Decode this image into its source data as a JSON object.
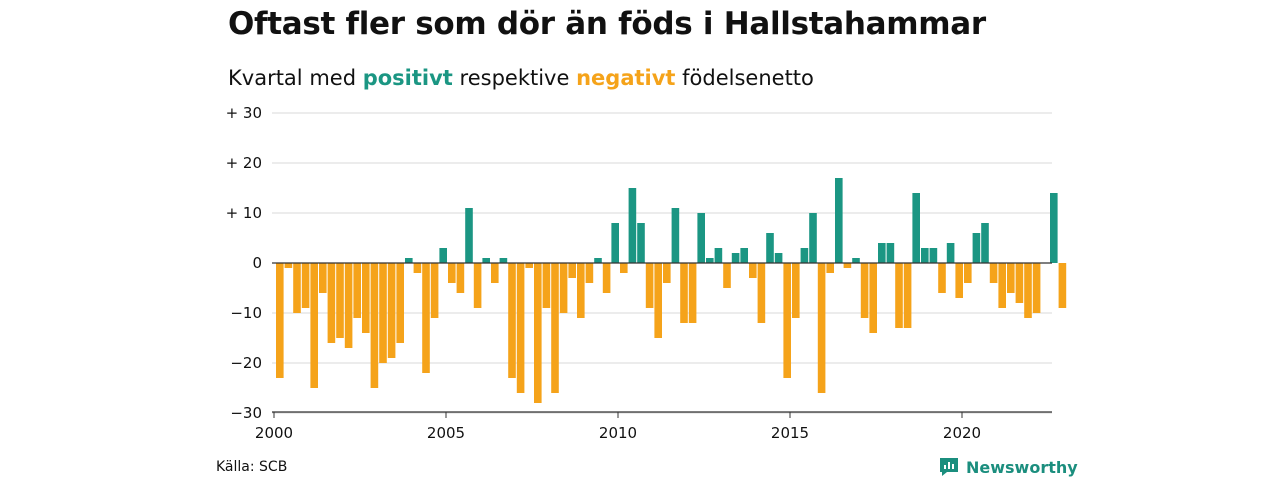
{
  "header": {
    "title": "Oftast fler som dör än föds i Hallstahammar",
    "subtitle_prefix": "Kvartal med",
    "subtitle_positive": "positivt",
    "subtitle_middle": "respektive",
    "subtitle_negative": "negativt",
    "subtitle_suffix": "födelsenetto"
  },
  "footer": {
    "source": "Källa: SCB",
    "brand": "Newsworthy",
    "brand_icon": "newsworthy-logo-icon"
  },
  "colors": {
    "positive": "#1b9683",
    "negative": "#f5a31a",
    "grid": "#d9d9d9",
    "brand": "#1b8e7e"
  },
  "chart_data": {
    "type": "bar",
    "title": "Oftast fler som dör än föds i Hallstahammar",
    "subtitle": "Kvartal med positivt respektive negativt födelsenetto",
    "xlabel": "",
    "ylabel": "",
    "xlim": [
      2000,
      2023
    ],
    "ylim": [
      -30,
      30
    ],
    "yticks": [
      30,
      20,
      10,
      0,
      -10,
      -20,
      -30
    ],
    "ytick_labels": [
      "+ 30",
      "+ 20",
      "+ 10",
      "0",
      "−10",
      "−20",
      "−30"
    ],
    "xticks": [
      2000,
      2005,
      2010,
      2015,
      2020
    ],
    "xtick_labels": [
      "2000",
      "2005",
      "2010",
      "2015",
      "2020"
    ],
    "grid": true,
    "legend": "none",
    "series": [
      {
        "x": [
          "2000 Q1",
          "2000 Q2",
          "2000 Q3",
          "2000 Q4",
          "2001 Q1",
          "2001 Q2",
          "2001 Q3",
          "2001 Q4",
          "2002 Q1",
          "2002 Q2",
          "2002 Q3",
          "2002 Q4",
          "2003 Q1",
          "2003 Q2",
          "2003 Q3",
          "2003 Q4",
          "2004 Q1",
          "2004 Q2",
          "2004 Q3",
          "2004 Q4",
          "2005 Q1",
          "2005 Q2",
          "2005 Q3",
          "2005 Q4",
          "2006 Q1",
          "2006 Q2",
          "2006 Q3",
          "2006 Q4",
          "2007 Q1",
          "2007 Q2",
          "2007 Q3",
          "2007 Q4",
          "2008 Q1",
          "2008 Q2",
          "2008 Q3",
          "2008 Q4",
          "2009 Q1",
          "2009 Q2",
          "2009 Q3",
          "2009 Q4",
          "2010 Q1",
          "2010 Q2",
          "2010 Q3",
          "2010 Q4",
          "2011 Q1",
          "2011 Q2",
          "2011 Q3",
          "2011 Q4",
          "2012 Q1",
          "2012 Q2",
          "2012 Q3",
          "2012 Q4",
          "2013 Q1",
          "2013 Q2",
          "2013 Q3",
          "2013 Q4",
          "2014 Q1",
          "2014 Q2",
          "2014 Q3",
          "2014 Q4",
          "2015 Q1",
          "2015 Q2",
          "2015 Q3",
          "2015 Q4",
          "2016 Q1",
          "2016 Q2",
          "2016 Q3",
          "2016 Q4",
          "2017 Q1",
          "2017 Q2",
          "2017 Q3",
          "2017 Q4",
          "2018 Q1",
          "2018 Q2",
          "2018 Q3",
          "2018 Q4",
          "2019 Q1",
          "2019 Q2",
          "2019 Q3",
          "2019 Q4",
          "2020 Q1",
          "2020 Q2",
          "2020 Q3",
          "2020 Q4",
          "2021 Q1",
          "2021 Q2",
          "2021 Q3",
          "2021 Q4",
          "2022 Q1",
          "2022 Q2",
          "2022 Q3",
          "2022 Q4",
          "2023 Q1"
        ],
        "values": [
          -23,
          -1,
          -10,
          -9,
          -25,
          -6,
          -16,
          -15,
          -17,
          -11,
          -14,
          -25,
          -20,
          -19,
          -16,
          1,
          -2,
          -22,
          -11,
          3,
          -4,
          -6,
          11,
          -9,
          1,
          -4,
          1,
          -23,
          -26,
          -1,
          -28,
          -9,
          -26,
          -10,
          -3,
          -11,
          -4,
          1,
          -6,
          8,
          -2,
          15,
          8,
          -9,
          -15,
          -4,
          11,
          -12,
          -12,
          10,
          1,
          3,
          -5,
          2,
          3,
          -3,
          -12,
          6,
          2,
          -23,
          -11,
          3,
          10,
          -26,
          -2,
          17,
          -1,
          1,
          -11,
          -14,
          4,
          4,
          -13,
          -13,
          14,
          3,
          3,
          -6,
          4,
          -7,
          -4,
          6,
          8,
          -4,
          -9,
          -6,
          -8,
          -11,
          -10,
          0,
          14,
          -9,
          0
        ]
      }
    ]
  }
}
